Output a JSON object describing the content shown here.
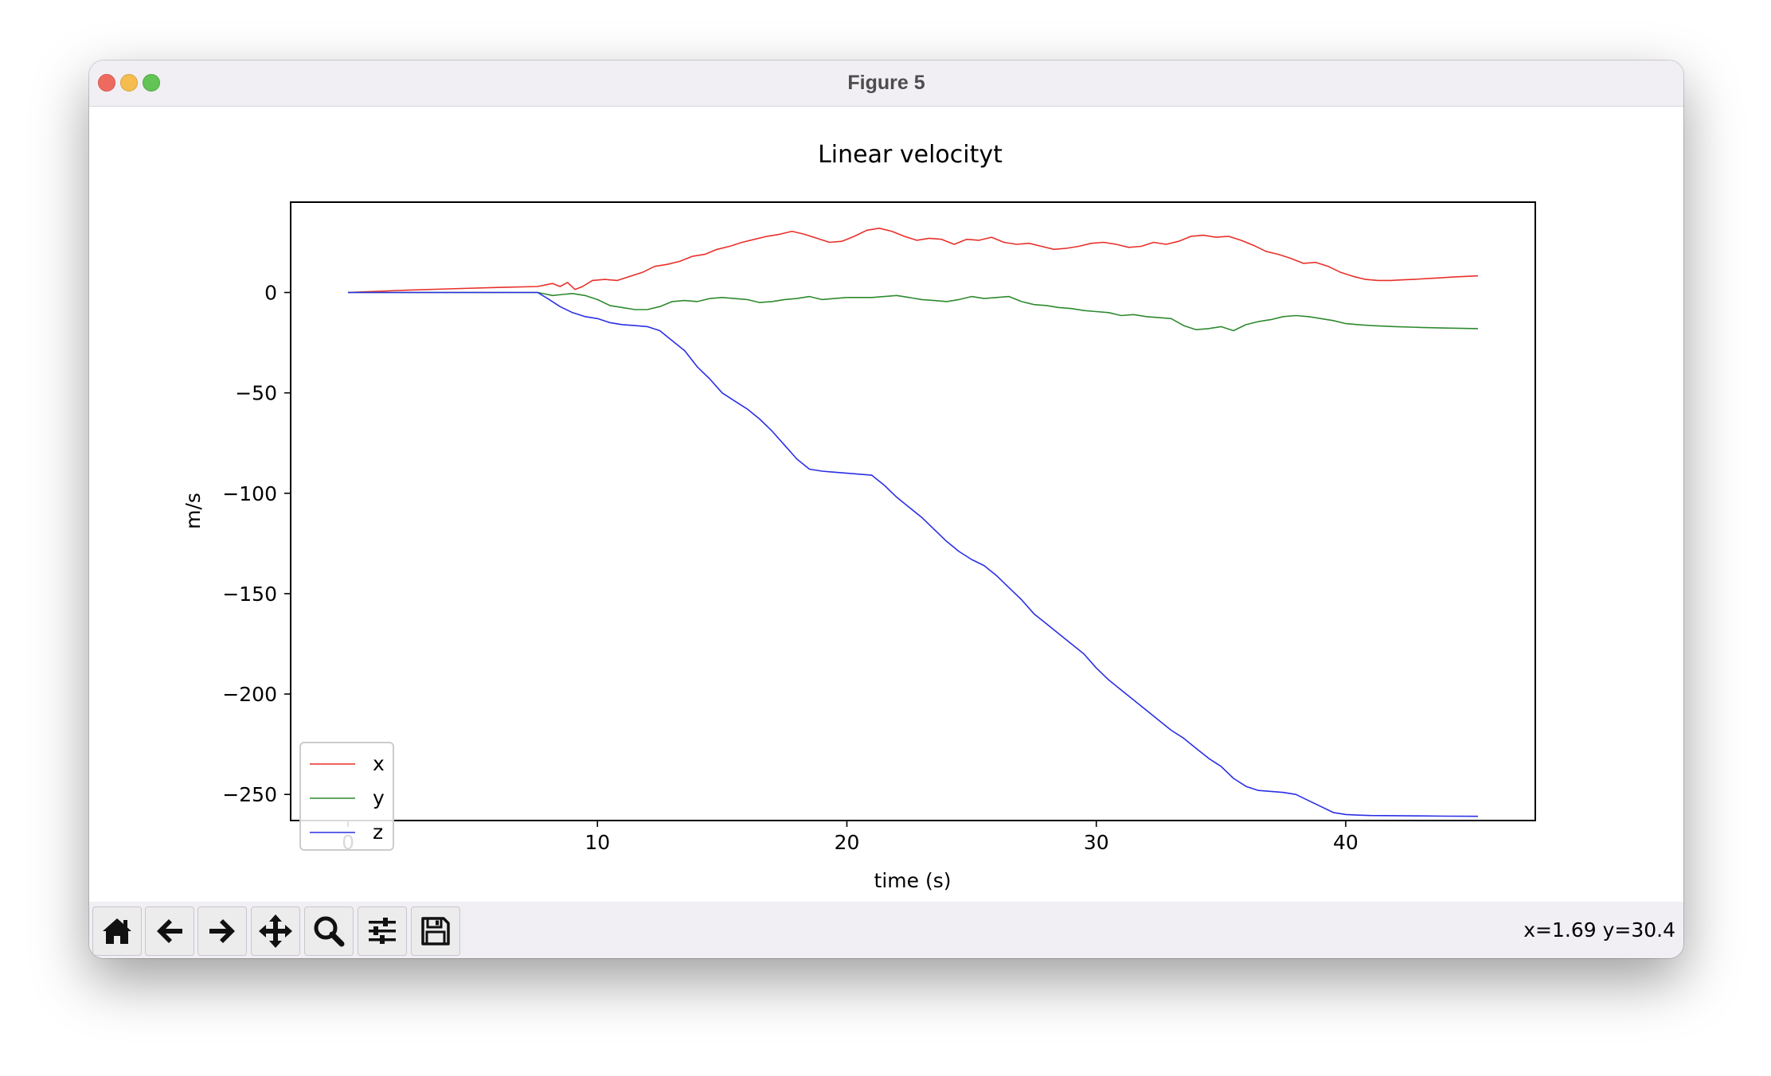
{
  "window": {
    "title": "Figure 5",
    "traffic_lights": {
      "close": "#ee6a5f",
      "minimize": "#f5bd4f",
      "zoom": "#61c454"
    }
  },
  "toolbar": {
    "buttons": [
      {
        "name": "home",
        "icon": "home-icon"
      },
      {
        "name": "back",
        "icon": "arrow-left-icon"
      },
      {
        "name": "forward",
        "icon": "arrow-right-icon"
      },
      {
        "name": "pan",
        "icon": "move-icon"
      },
      {
        "name": "zoom",
        "icon": "magnifier-icon"
      },
      {
        "name": "configure-subplots",
        "icon": "sliders-icon"
      },
      {
        "name": "save",
        "icon": "floppy-disk-icon"
      }
    ],
    "coords": "x=1.69 y=30.4"
  },
  "chart_data": {
    "type": "line",
    "title": "Linear velocityt",
    "xlabel": "time (s)",
    "ylabel": "m/s",
    "xlim": [
      -2.3,
      47.6
    ],
    "ylim": [
      -263,
      45
    ],
    "xticks": [
      0,
      10,
      20,
      30,
      40
    ],
    "yticks": [
      0,
      -50,
      -100,
      -150,
      -200,
      -250
    ],
    "xtick_labels": [
      "0",
      "10",
      "20",
      "30",
      "40"
    ],
    "ytick_labels": [
      "0",
      "−50",
      "−100",
      "−150",
      "−200",
      "−250"
    ],
    "grid": false,
    "legend": "lower left",
    "series": [
      {
        "name": "x",
        "color": "#e8302a",
        "x": [
          0,
          2,
          4,
          6,
          7.6,
          8.2,
          8.5,
          8.8,
          9.1,
          9.4,
          9.8,
          10.3,
          10.8,
          11.3,
          11.8,
          12.3,
          12.8,
          13.3,
          13.8,
          14.3,
          14.8,
          15.3,
          15.8,
          16.3,
          16.8,
          17.3,
          17.8,
          18.3,
          18.8,
          19.3,
          19.8,
          20.3,
          20.8,
          21.3,
          21.8,
          22.3,
          22.8,
          23.3,
          23.8,
          24.3,
          24.8,
          25.3,
          25.8,
          26.3,
          26.8,
          27.3,
          27.8,
          28.3,
          28.8,
          29.3,
          29.8,
          30.3,
          30.8,
          31.3,
          31.8,
          32.3,
          32.8,
          33.3,
          33.8,
          34.3,
          34.8,
          35.3,
          35.8,
          36.3,
          36.8,
          37.3,
          37.8,
          38.3,
          38.8,
          39.3,
          39.8,
          40.3,
          40.8,
          41.3,
          41.8,
          42.3,
          42.8,
          43.3,
          43.8,
          44.3,
          44.8,
          45.3
        ],
        "y": [
          0,
          1,
          1.8,
          2.5,
          3,
          4.5,
          3,
          5,
          1.5,
          3,
          6,
          6.5,
          6,
          8,
          10,
          13,
          14,
          15.5,
          18,
          19,
          21.5,
          23,
          25,
          26.5,
          28,
          29,
          30.5,
          29,
          27,
          25,
          25.5,
          28,
          31,
          32,
          30.5,
          28,
          26,
          27,
          26.5,
          24,
          26.5,
          26,
          27.5,
          25,
          24,
          24.5,
          23,
          21.5,
          22,
          23,
          24.5,
          25,
          24,
          22.5,
          23,
          25,
          24,
          25.5,
          28,
          28.5,
          27.5,
          28,
          26,
          23.5,
          20.5,
          19,
          17,
          14.5,
          15,
          13,
          10,
          8,
          6.5,
          6,
          6,
          6.3,
          6.6,
          7,
          7.3,
          7.7,
          8,
          8.3
        ]
      },
      {
        "name": "y",
        "color": "#2e8a2e",
        "x": [
          0,
          2,
          4,
          6,
          7.6,
          8.2,
          8.6,
          9.0,
          9.5,
          10.0,
          10.5,
          11.0,
          11.5,
          12.0,
          12.5,
          13.0,
          13.5,
          14.0,
          14.5,
          15.0,
          15.5,
          16.0,
          16.5,
          17.0,
          17.5,
          18.0,
          18.5,
          19.0,
          19.5,
          20.0,
          20.5,
          21.0,
          21.5,
          22.0,
          22.5,
          23.0,
          23.5,
          24.0,
          24.5,
          25.0,
          25.5,
          26.0,
          26.5,
          27.0,
          27.5,
          28.0,
          28.5,
          29.0,
          29.5,
          30.0,
          30.5,
          31.0,
          31.5,
          32.0,
          32.5,
          33.0,
          33.5,
          34.0,
          34.5,
          35.0,
          35.5,
          36.0,
          36.5,
          37.0,
          37.5,
          38.0,
          38.5,
          39.0,
          39.5,
          40.0,
          40.5,
          41.0,
          42.0,
          43.0,
          44.0,
          45.3
        ],
        "y": [
          0,
          0,
          0,
          0,
          0,
          -1.5,
          -1,
          -0.5,
          -1.5,
          -3.5,
          -6.5,
          -7.5,
          -8.5,
          -8.5,
          -7,
          -4.5,
          -4,
          -4.5,
          -3,
          -2.5,
          -3,
          -3.5,
          -5,
          -4.5,
          -3.5,
          -3,
          -2,
          -3.5,
          -3,
          -2.5,
          -2.5,
          -2.5,
          -2,
          -1.5,
          -2.5,
          -3.5,
          -4,
          -4.5,
          -3.5,
          -2,
          -3,
          -2.5,
          -2,
          -4.5,
          -6,
          -6.5,
          -7.5,
          -8,
          -9,
          -9.5,
          -10,
          -11.5,
          -11,
          -12,
          -12.5,
          -13,
          -16.5,
          -18.5,
          -18,
          -17,
          -19,
          -16,
          -14.5,
          -13.5,
          -12,
          -11.5,
          -12,
          -13,
          -14,
          -15.5,
          -16,
          -16.5,
          -17,
          -17.4,
          -17.7,
          -18
        ]
      },
      {
        "name": "z",
        "color": "#2b2fe4",
        "x": [
          0,
          2,
          4,
          6,
          7.6,
          8.0,
          8.5,
          9.0,
          9.5,
          10.0,
          10.5,
          11.0,
          11.5,
          12.0,
          12.5,
          13.0,
          13.5,
          14.0,
          14.5,
          15.0,
          15.5,
          16.0,
          16.5,
          17.0,
          17.5,
          18.0,
          18.5,
          19.0,
          19.5,
          20.0,
          20.5,
          21.0,
          21.5,
          22.0,
          22.5,
          23.0,
          23.5,
          24.0,
          24.5,
          25.0,
          25.5,
          26.0,
          26.5,
          27.0,
          27.5,
          28.0,
          28.5,
          29.0,
          29.5,
          30.0,
          30.5,
          31.0,
          31.5,
          32.0,
          32.5,
          33.0,
          33.5,
          34.0,
          34.5,
          35.0,
          35.5,
          36.0,
          36.5,
          37.0,
          37.5,
          38.0,
          38.5,
          39.0,
          39.5,
          40.0,
          40.5,
          41.0,
          42.0,
          43.0,
          44.0,
          45.3
        ],
        "y": [
          0,
          0,
          0,
          0,
          0,
          -3,
          -7,
          -10,
          -12,
          -13,
          -15,
          -16,
          -16.5,
          -17,
          -19,
          -24,
          -29,
          -37,
          -43,
          -50,
          -54,
          -58,
          -63,
          -69,
          -76,
          -83,
          -88,
          -89,
          -89.5,
          -90,
          -90.5,
          -91,
          -96,
          -102,
          -107,
          -112,
          -118,
          -124,
          -129,
          -133,
          -136,
          -141,
          -147,
          -153,
          -160,
          -165,
          -170,
          -175,
          -180,
          -187,
          -193,
          -198,
          -203,
          -208,
          -213,
          -218,
          -222,
          -227,
          -232,
          -236,
          -242,
          -246,
          -248,
          -248.5,
          -249,
          -250,
          -253,
          -256,
          -259,
          -260,
          -260.3,
          -260.5,
          -260.6,
          -260.7,
          -260.8,
          -260.9
        ]
      }
    ]
  }
}
